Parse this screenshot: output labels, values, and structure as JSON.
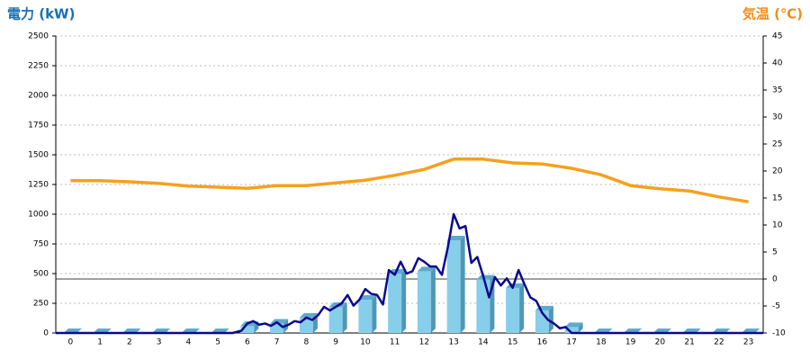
{
  "chart_data": {
    "type": "combo",
    "y_label": "電力 (kW)",
    "y2_label": "気温 (℃)",
    "y_label_color": "#1a6fb5",
    "y2_label_color": "#f08c1e",
    "categories": [
      0,
      1,
      2,
      3,
      4,
      5,
      6,
      7,
      8,
      9,
      10,
      11,
      12,
      13,
      14,
      15,
      16,
      17,
      18,
      19,
      20,
      21,
      22,
      23
    ],
    "xlim": [
      -0.5,
      23.5
    ],
    "ylim": [
      0,
      2500
    ],
    "yticks": [
      0,
      250,
      500,
      750,
      1000,
      1250,
      1500,
      1750,
      2000,
      2250,
      2500
    ],
    "y2lim": [
      -10,
      45
    ],
    "y2ticks": [
      -10,
      -5,
      0,
      5,
      10,
      15,
      20,
      25,
      30,
      35,
      40,
      45
    ],
    "y2_reference": 0,
    "grid": true,
    "series": [
      {
        "type": "bar",
        "color": "#87ceeb",
        "values": [
          0,
          0,
          0,
          0,
          0,
          0,
          60,
          80,
          130,
          220,
          280,
          500,
          520,
          780,
          450,
          380,
          190,
          50,
          0,
          0,
          0,
          0,
          0,
          0
        ]
      },
      {
        "type": "line",
        "color": "#0a0a8c",
        "x": [
          -0.5,
          5.5,
          5.8,
          6.0,
          6.2,
          6.4,
          6.6,
          6.8,
          7.0,
          7.2,
          7.4,
          7.6,
          7.8,
          8.0,
          8.2,
          8.4,
          8.6,
          8.8,
          9.0,
          9.2,
          9.4,
          9.6,
          9.8,
          10.0,
          10.2,
          10.4,
          10.6,
          10.8,
          11.0,
          11.2,
          11.4,
          11.6,
          11.8,
          12.0,
          12.2,
          12.4,
          12.6,
          12.8,
          13.0,
          13.2,
          13.4,
          13.6,
          13.8,
          14.0,
          14.2,
          14.4,
          14.6,
          14.8,
          15.0,
          15.2,
          15.4,
          15.6,
          15.8,
          16.0,
          16.2,
          16.4,
          16.6,
          16.8,
          17.0,
          23.5
        ],
        "values": [
          0,
          0,
          20,
          80,
          100,
          70,
          80,
          60,
          90,
          50,
          70,
          100,
          90,
          130,
          110,
          150,
          220,
          190,
          220,
          250,
          320,
          230,
          280,
          370,
          330,
          320,
          240,
          530,
          490,
          600,
          500,
          520,
          630,
          600,
          560,
          560,
          490,
          720,
          1000,
          880,
          900,
          590,
          640,
          480,
          300,
          470,
          400,
          460,
          380,
          530,
          410,
          300,
          270,
          170,
          110,
          80,
          40,
          50,
          0,
          0
        ]
      },
      {
        "type": "line",
        "axis": "y2",
        "color": "#f5a01e",
        "values": [
          18.2,
          18.2,
          18,
          17.7,
          17.2,
          17,
          16.8,
          17.3,
          17.3,
          17.8,
          18.3,
          19.2,
          20.3,
          22.2,
          22.2,
          21.5,
          21.3,
          20.5,
          19.3,
          17.3,
          16.7,
          16.3,
          15.2,
          14.3
        ]
      }
    ]
  }
}
